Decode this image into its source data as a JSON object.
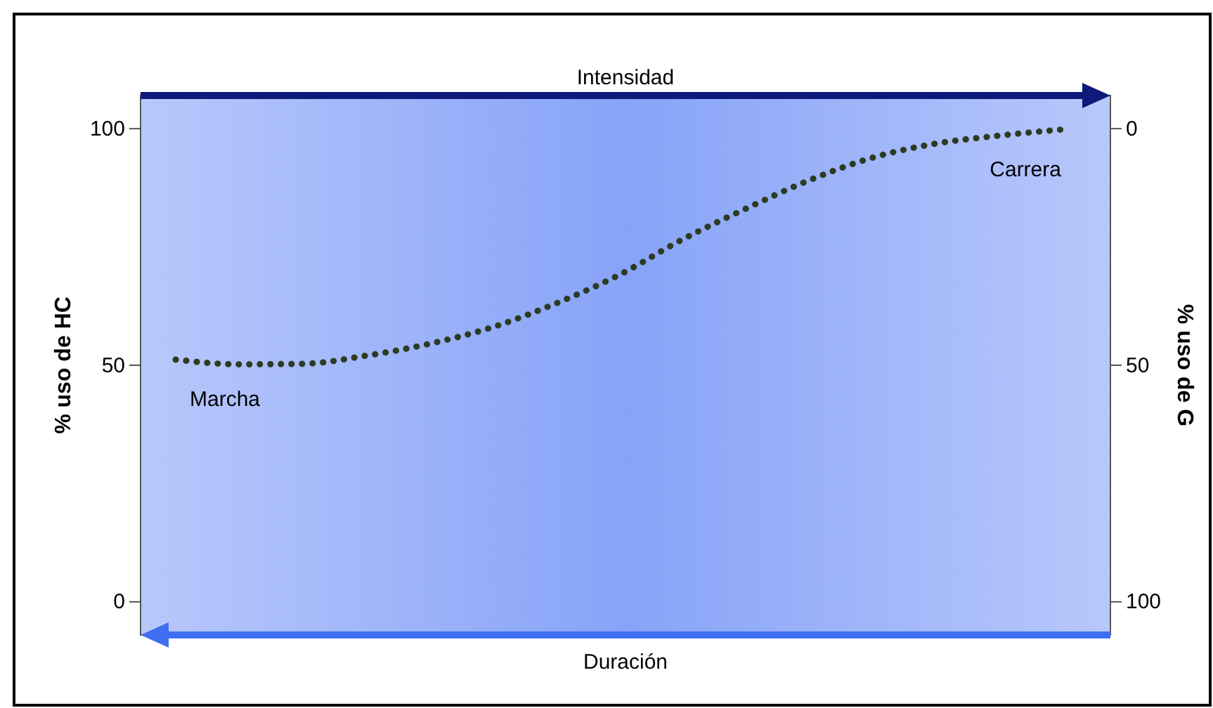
{
  "chart_data": {
    "type": "line",
    "x2label": "Intensidad",
    "xlabel": "Duración",
    "ylabel": "% uso de HC",
    "y2label": "% uso de G",
    "categories": [
      null,
      null,
      null,
      null,
      null,
      null,
      null,
      null,
      null,
      null,
      null,
      null,
      null,
      null,
      null
    ],
    "series": [
      {
        "color": "#2d3b22",
        "values": [
          51.2,
          50.2,
          50.3,
          52,
          54.5,
          58,
          63,
          69,
          76.5,
          83,
          89,
          93.8,
          96.8,
          98.5,
          99.8
        ]
      }
    ],
    "ylim": [
      -7,
      107
    ],
    "yticks": [
      0,
      50,
      100
    ],
    "y2lim": [
      107,
      -7
    ],
    "y2ticks": [
      0,
      50,
      100
    ],
    "annotations": [
      "Marcha",
      "Carrera"
    ],
    "marker": "none",
    "line_style": "dotted"
  }
}
